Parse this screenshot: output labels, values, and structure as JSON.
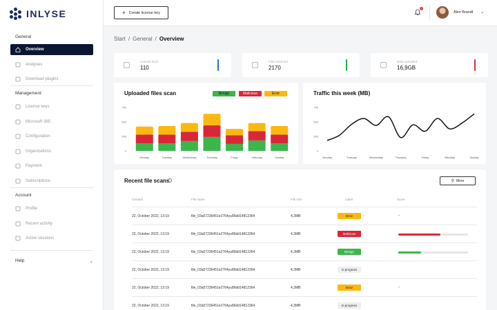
{
  "brand": {
    "name": "INLYSE"
  },
  "sidebar": {
    "sections": [
      {
        "label": "General",
        "items": [
          {
            "label": "Overview",
            "icon": "home-icon",
            "active": true
          },
          {
            "label": "Analyses",
            "icon": "analyses-icon"
          },
          {
            "label": "Download plugins",
            "icon": "download-icon"
          }
        ]
      },
      {
        "label": "Management",
        "items": [
          {
            "label": "License keys",
            "icon": "key-icon"
          },
          {
            "label": "Microsoft 365",
            "icon": "microsoft-icon"
          },
          {
            "label": "Configuration",
            "icon": "config-icon"
          },
          {
            "label": "Organizations",
            "icon": "organizations-icon"
          },
          {
            "label": "Payment",
            "icon": "payment-icon"
          },
          {
            "label": "Subscriptions",
            "icon": "subscriptions-icon"
          }
        ]
      },
      {
        "label": "Account",
        "items": [
          {
            "label": "Profile",
            "icon": "profile-icon"
          },
          {
            "label": "Recent activity",
            "icon": "activity-icon"
          },
          {
            "label": "Active sessions",
            "icon": "sessions-icon"
          }
        ]
      }
    ],
    "help": "Help"
  },
  "topbar": {
    "create_label": "Create license key",
    "notifications_count": "2",
    "user_name": "Alex Brandl"
  },
  "breadcrumb": {
    "items": [
      "Start",
      "General"
    ],
    "current": "Overview",
    "separator": "/"
  },
  "stats": [
    {
      "label": "License keys",
      "value": "110",
      "color": "#1f6fd8"
    },
    {
      "label": "Files scanned",
      "value": "2170",
      "color": "#1faa4a"
    },
    {
      "label": "Data uploaded",
      "value": "16,9GB",
      "color": "#d32f3a"
    }
  ],
  "colors": {
    "benign": "#3cb54a",
    "malicious": "#d9273a",
    "error": "#fbb80f",
    "line": "#111111"
  },
  "uploaded_chart": {
    "title": "Uploaded files scan",
    "legend": [
      "Benign",
      "Malicious",
      "Error"
    ]
  },
  "traffic_chart": {
    "title": "Traffic this week (MB)"
  },
  "chart_data": [
    {
      "type": "bar",
      "stacked": true,
      "title": "Uploaded files scan",
      "categories": [
        "Monday",
        "Tuesday",
        "Wednesday",
        "Thursday",
        "Friday",
        "Saturday",
        "Sunday"
      ],
      "yticks": [
        "750",
        "500",
        "250",
        "0"
      ],
      "ylim": [
        0,
        750
      ],
      "series": [
        {
          "name": "Benign",
          "values": [
            130,
            130,
            170,
            240,
            120,
            180,
            130
          ]
        },
        {
          "name": "Malicious",
          "values": [
            150,
            150,
            160,
            200,
            150,
            160,
            150
          ]
        },
        {
          "name": "Error",
          "values": [
            140,
            150,
            150,
            200,
            110,
            140,
            150
          ]
        }
      ],
      "legend": "top-right"
    },
    {
      "type": "line",
      "title": "Traffic this week (MB)",
      "categories": [
        "Monday",
        "Tuesday",
        "Wednesday",
        "Thursday",
        "Friday",
        "Saturday",
        "Sunday"
      ],
      "yticks": [
        "750",
        "500",
        "250",
        "0"
      ],
      "ylim": [
        0,
        750
      ],
      "x": [
        0,
        0.5,
        1,
        1.5,
        2,
        2.5,
        3,
        3.5,
        4,
        4.5,
        5,
        5.5,
        6
      ],
      "values": [
        180,
        270,
        460,
        560,
        440,
        590,
        230,
        450,
        340,
        560,
        380,
        480,
        640
      ]
    }
  ],
  "table": {
    "title": "Recent file scans",
    "more_label": "More",
    "headers": [
      "Created",
      "File name",
      "File size",
      "Label",
      "Score"
    ],
    "rows": [
      {
        "created": "22, October 2022, 13:19",
        "file": "file_03a57236451e2764yu86dd14812364",
        "size": "4,3MB",
        "label": "Error",
        "score": null
      },
      {
        "created": "22, October 2022, 13:19",
        "file": "file_03a57236451e2764yu86dd14812364",
        "size": "4,3MB",
        "label": "Malicious",
        "score": 0.6
      },
      {
        "created": "22, October 2022, 13:19",
        "file": "file_03a57236451e2764yu86dd14812364",
        "size": "4,3MB",
        "label": "Benign",
        "score": 0.33
      },
      {
        "created": "22, October 2022, 13:19",
        "file": "file_03a57236451e2764yu86dd14812364",
        "size": "4,3MB",
        "label": "In progress",
        "score": null
      },
      {
        "created": "22, October 2022, 13:19",
        "file": "file_03a57236451e2764yu86dd14812364",
        "size": "4,3MB",
        "label": "Error",
        "score": null
      },
      {
        "created": "22, October 2022, 13:19",
        "file": "file_03a57236451e2764yu86dd14812364",
        "size": "4,3MB",
        "label": "In progress",
        "score": null
      }
    ],
    "score_empty": "-"
  }
}
